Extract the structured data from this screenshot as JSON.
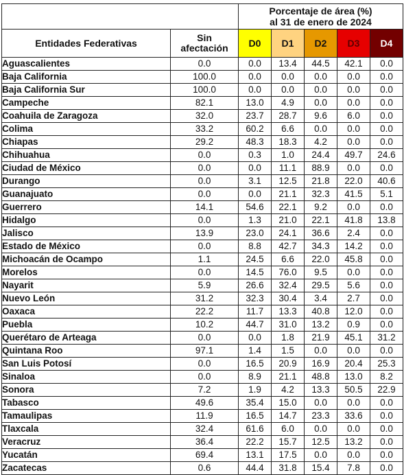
{
  "table": {
    "group_header": "Porcentaje de área (%)\nal 31 de enero de 2024",
    "columns": {
      "state": "Entidades Federativas",
      "sin": "Sin\nafectación",
      "d0": "D0",
      "d1": "D1",
      "d2": "D2",
      "d3": "D3",
      "d4": "D4"
    },
    "colors": {
      "d0": "#ffff00",
      "d1": "#ffd380",
      "d2": "#e69800",
      "d3": "#e60000",
      "d4": "#730000"
    },
    "rows": [
      [
        "Aguascalientes",
        "0.0",
        "0.0",
        "13.4",
        "44.5",
        "42.1",
        "0.0"
      ],
      [
        "Baja California",
        "100.0",
        "0.0",
        "0.0",
        "0.0",
        "0.0",
        "0.0"
      ],
      [
        "Baja California Sur",
        "100.0",
        "0.0",
        "0.0",
        "0.0",
        "0.0",
        "0.0"
      ],
      [
        "Campeche",
        "82.1",
        "13.0",
        "4.9",
        "0.0",
        "0.0",
        "0.0"
      ],
      [
        "Coahuila de Zaragoza",
        "32.0",
        "23.7",
        "28.7",
        "9.6",
        "6.0",
        "0.0"
      ],
      [
        "Colima",
        "33.2",
        "60.2",
        "6.6",
        "0.0",
        "0.0",
        "0.0"
      ],
      [
        "Chiapas",
        "29.2",
        "48.3",
        "18.3",
        "4.2",
        "0.0",
        "0.0"
      ],
      [
        "Chihuahua",
        "0.0",
        "0.3",
        "1.0",
        "24.4",
        "49.7",
        "24.6"
      ],
      [
        "Ciudad de México",
        "0.0",
        "0.0",
        "11.1",
        "88.9",
        "0.0",
        "0.0"
      ],
      [
        "Durango",
        "0.0",
        "3.1",
        "12.5",
        "21.8",
        "22.0",
        "40.6"
      ],
      [
        "Guanajuato",
        "0.0",
        "0.0",
        "21.1",
        "32.3",
        "41.5",
        "5.1"
      ],
      [
        "Guerrero",
        "14.1",
        "54.6",
        "22.1",
        "9.2",
        "0.0",
        "0.0"
      ],
      [
        "Hidalgo",
        "0.0",
        "1.3",
        "21.0",
        "22.1",
        "41.8",
        "13.8"
      ],
      [
        "Jalisco",
        "13.9",
        "23.0",
        "24.1",
        "36.6",
        "2.4",
        "0.0"
      ],
      [
        "Estado de México",
        "0.0",
        "8.8",
        "42.7",
        "34.3",
        "14.2",
        "0.0"
      ],
      [
        "Michoacán de Ocampo",
        "1.1",
        "24.5",
        "6.6",
        "22.0",
        "45.8",
        "0.0"
      ],
      [
        "Morelos",
        "0.0",
        "14.5",
        "76.0",
        "9.5",
        "0.0",
        "0.0"
      ],
      [
        "Nayarit",
        "5.9",
        "26.6",
        "32.4",
        "29.5",
        "5.6",
        "0.0"
      ],
      [
        "Nuevo León",
        "31.2",
        "32.3",
        "30.4",
        "3.4",
        "2.7",
        "0.0"
      ],
      [
        "Oaxaca",
        "22.2",
        "11.7",
        "13.3",
        "40.8",
        "12.0",
        "0.0"
      ],
      [
        "Puebla",
        "10.2",
        "44.7",
        "31.0",
        "13.2",
        "0.9",
        "0.0"
      ],
      [
        "Querétaro de Arteaga",
        "0.0",
        "0.0",
        "1.8",
        "21.9",
        "45.1",
        "31.2"
      ],
      [
        "Quintana Roo",
        "97.1",
        "1.4",
        "1.5",
        "0.0",
        "0.0",
        "0.0"
      ],
      [
        "San Luis Potosí",
        "0.0",
        "16.5",
        "20.9",
        "16.9",
        "20.4",
        "25.3"
      ],
      [
        "Sinaloa",
        "0.0",
        "8.9",
        "21.1",
        "48.8",
        "13.0",
        "8.2"
      ],
      [
        "Sonora",
        "7.2",
        "1.9",
        "4.2",
        "13.3",
        "50.5",
        "22.9"
      ],
      [
        "Tabasco",
        "49.6",
        "35.4",
        "15.0",
        "0.0",
        "0.0",
        "0.0"
      ],
      [
        "Tamaulipas",
        "11.9",
        "16.5",
        "14.7",
        "23.3",
        "33.6",
        "0.0"
      ],
      [
        "Tlaxcala",
        "32.4",
        "61.6",
        "6.0",
        "0.0",
        "0.0",
        "0.0"
      ],
      [
        "Veracruz",
        "36.4",
        "22.2",
        "15.7",
        "12.5",
        "13.2",
        "0.0"
      ],
      [
        "Yucatán",
        "69.4",
        "13.1",
        "17.5",
        "0.0",
        "0.0",
        "0.0"
      ],
      [
        "Zacatecas",
        "0.6",
        "44.4",
        "31.8",
        "15.4",
        "7.8",
        "0.0"
      ]
    ]
  }
}
